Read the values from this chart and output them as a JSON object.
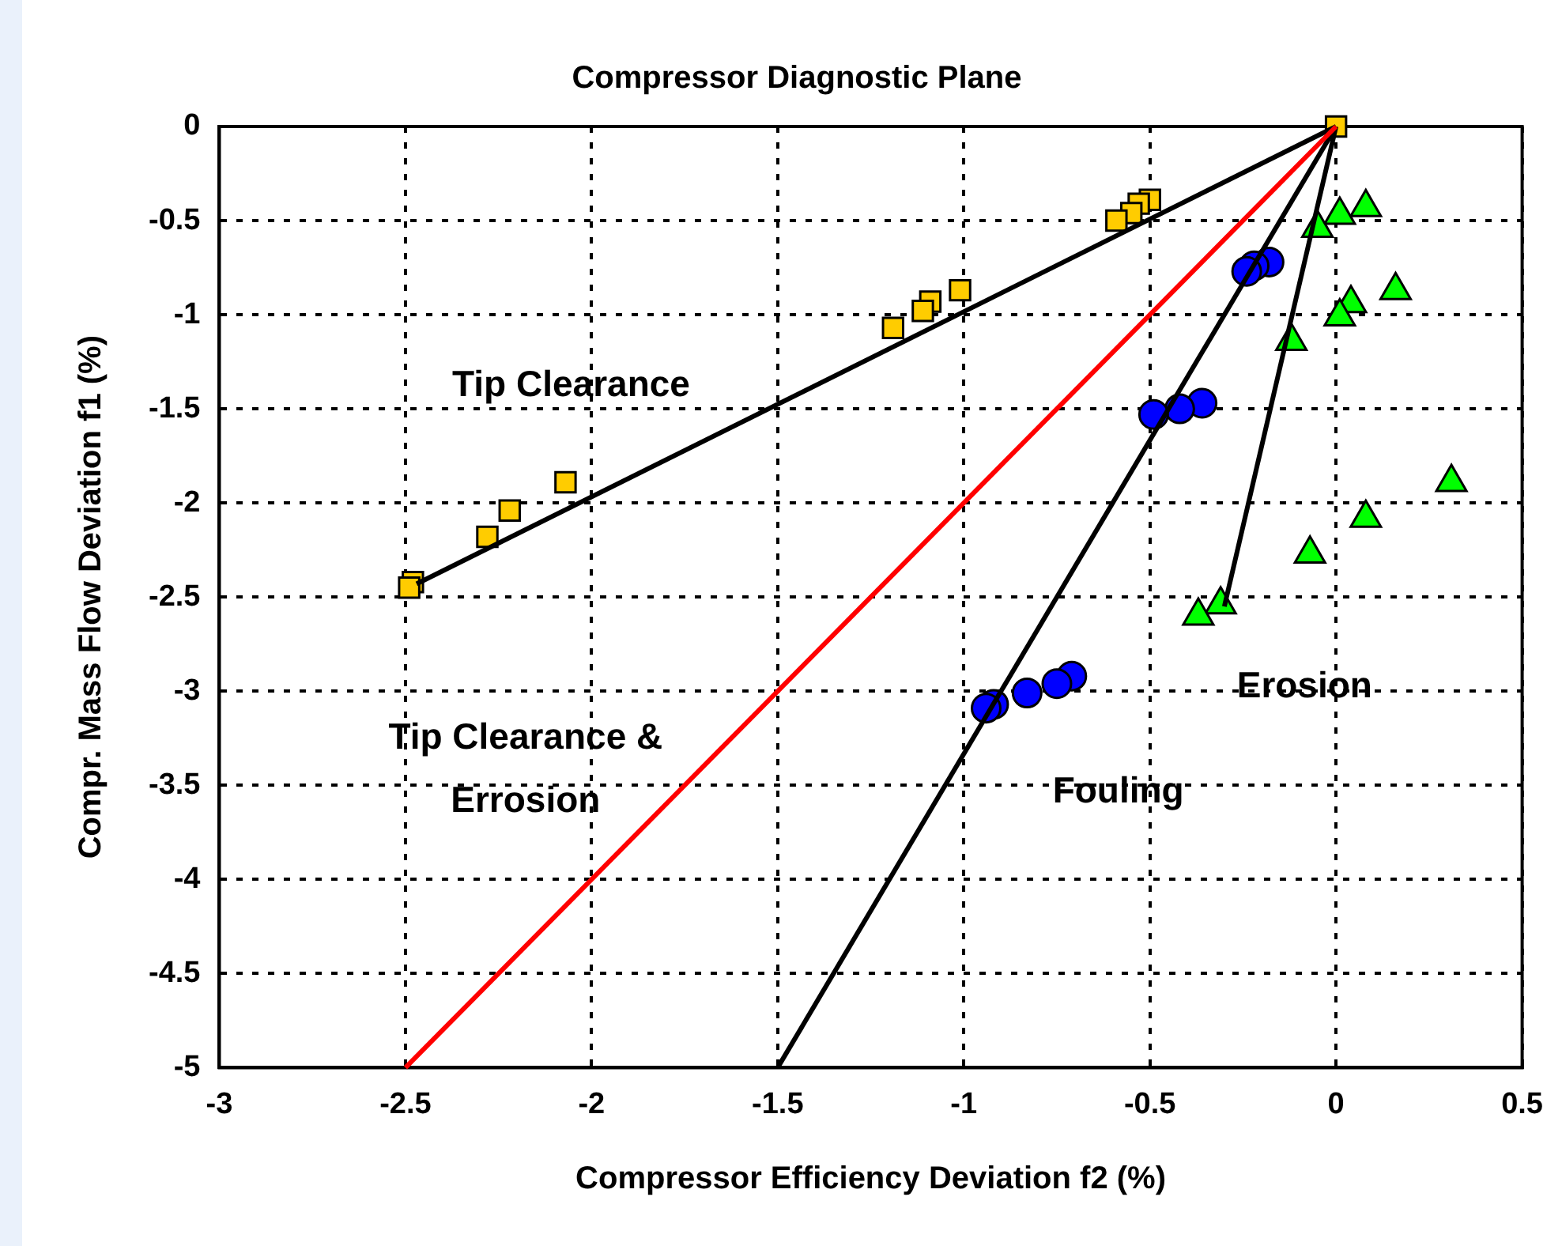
{
  "chart_data": {
    "type": "scatter",
    "title": "Compressor Diagnostic Plane",
    "xlabel": "Compressor Efficiency Deviation f2 (%)",
    "ylabel": "Compr. Mass Flow Deviation f1 (%)",
    "xlim": [
      -3,
      0.5
    ],
    "xticks": [
      -3,
      -2.5,
      -2,
      -1.5,
      -1,
      -0.5,
      0,
      0.5
    ],
    "ylim": [
      -5,
      0
    ],
    "yticks": [
      -5,
      -4.5,
      -4,
      -3.5,
      -3,
      -2.5,
      -2,
      -1.5,
      -1,
      -0.5,
      0
    ],
    "grid": true,
    "legend": false,
    "series": [
      {
        "type": "line",
        "color": "#ff0000",
        "x": [
          0,
          -2.5
        ],
        "values": [
          0,
          -5
        ],
        "marker": "none"
      },
      {
        "type": "line",
        "color": "#000000",
        "x": [
          0,
          -2.47
        ],
        "values": [
          0,
          -2.43
        ],
        "marker": "none"
      },
      {
        "type": "line",
        "color": "#000000",
        "x": [
          0,
          -1.5
        ],
        "values": [
          0,
          -5
        ],
        "marker": "none"
      },
      {
        "type": "line",
        "color": "#000000",
        "x": [
          0,
          -0.3
        ],
        "values": [
          0,
          -2.55
        ],
        "marker": "none"
      },
      {
        "type": "scatter",
        "color": "#ffcc00",
        "marker": "square",
        "x": [
          0,
          -0.5,
          -0.53,
          -0.55,
          -0.59,
          -1.01,
          -1.09,
          -1.11,
          -1.19,
          -2.07,
          -2.22,
          -2.28,
          -2.48,
          -2.49
        ],
        "values": [
          0,
          -0.39,
          -0.41,
          -0.46,
          -0.5,
          -0.87,
          -0.93,
          -0.98,
          -1.07,
          -1.89,
          -2.04,
          -2.18,
          -2.42,
          -2.45
        ]
      },
      {
        "type": "scatter",
        "color": "#0000ff",
        "marker": "circle",
        "x": [
          -0.18,
          -0.22,
          -0.24,
          -0.36,
          -0.42,
          -0.49,
          -0.71,
          -0.75,
          -0.83,
          -0.92,
          -0.94
        ],
        "values": [
          -0.72,
          -0.74,
          -0.77,
          -1.47,
          -1.5,
          -1.53,
          -2.92,
          -2.96,
          -3.01,
          -3.07,
          -3.09
        ]
      },
      {
        "type": "scatter",
        "color": "#00ff00",
        "marker": "triangle",
        "x": [
          0.08,
          0.01,
          -0.05,
          0.16,
          0.04,
          0.01,
          -0.12,
          0.31,
          0.08,
          -0.07,
          -0.31,
          -0.37
        ],
        "values": [
          -0.43,
          -0.47,
          -0.54,
          -0.87,
          -0.94,
          -1.01,
          -1.14,
          -1.89,
          -2.08,
          -2.27,
          -2.54,
          -2.6
        ]
      }
    ],
    "annotations": [
      "Tip Clearance",
      "Tip Clearance &\nErrosion",
      "Erosion",
      "Fouling"
    ]
  }
}
